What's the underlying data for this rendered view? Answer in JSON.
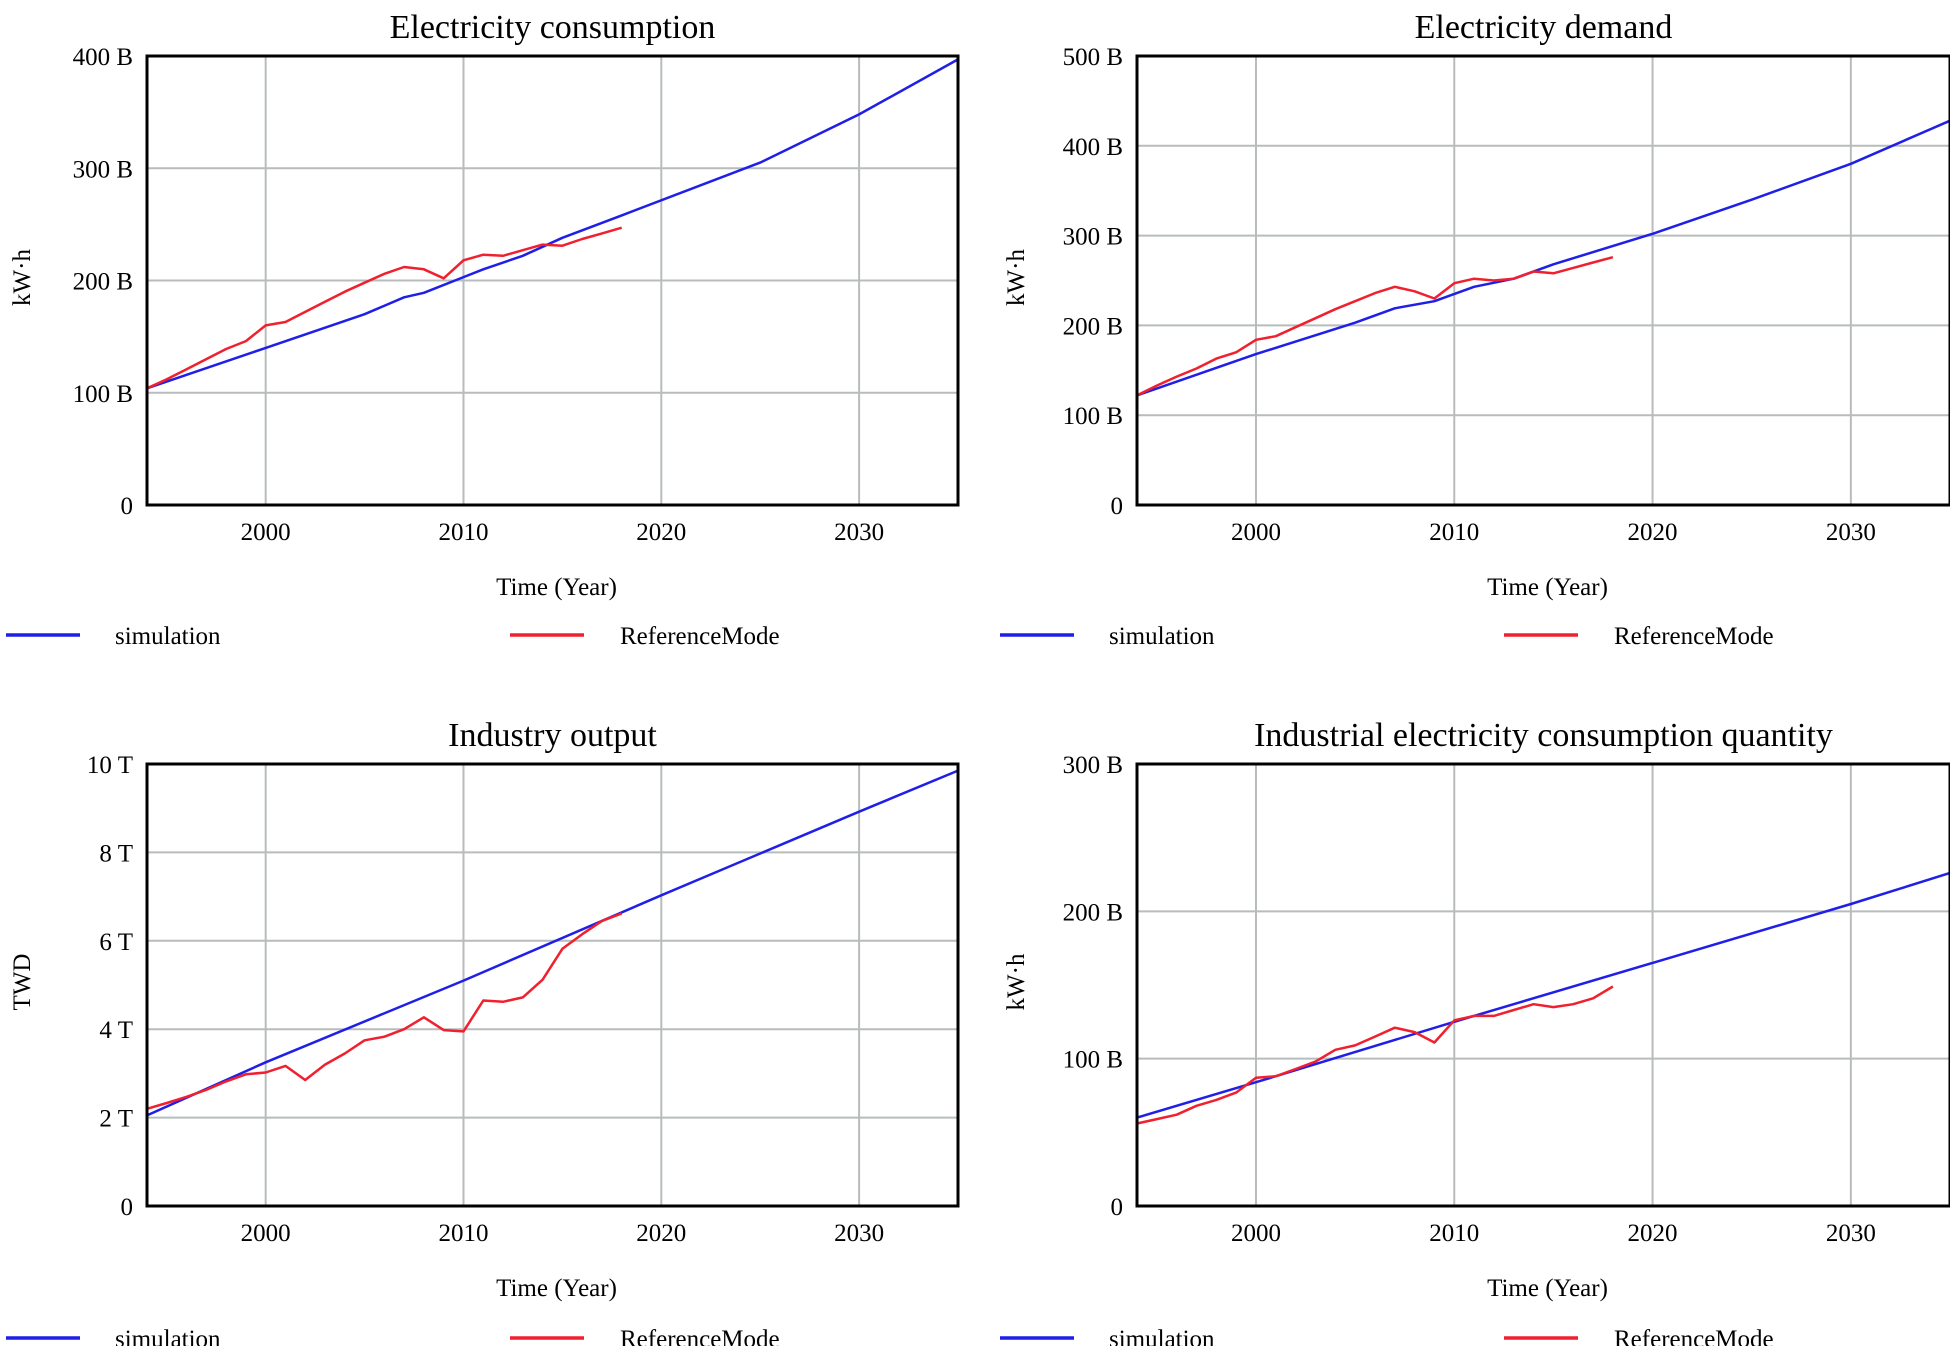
{
  "colors": {
    "simulation": "#1f1fe8",
    "reference": "#f0202e",
    "grid": "#b8bcbc"
  },
  "legend": {
    "simulation_label": "simulation",
    "reference_label": "ReferenceMode"
  },
  "chart_data": [
    {
      "type": "line",
      "title": "Electricity consumption",
      "xlabel": "Time (Year)",
      "ylabel": "kW·h",
      "xlim": [
        1994,
        2035
      ],
      "ylim": [
        0,
        400
      ],
      "xticks": [
        2000,
        2010,
        2020,
        2030
      ],
      "yticks": [
        0,
        100,
        200,
        300,
        400
      ],
      "ytick_labels": [
        "0",
        "100 B",
        "200 B",
        "300 B",
        "400 B"
      ],
      "grid": true,
      "legend_position": "bottom",
      "series": [
        {
          "name": "simulation",
          "x": [
            1994,
            2000,
            2005,
            2007,
            2008,
            2010,
            2011,
            2013,
            2015,
            2018,
            2025,
            2030,
            2035
          ],
          "y": [
            104,
            140,
            170,
            185,
            189,
            203,
            210,
            222,
            238,
            258,
            305,
            348,
            397
          ]
        },
        {
          "name": "ReferenceMode",
          "x": [
            1994,
            1995,
            1996,
            1997,
            1998,
            1999,
            2000,
            2001,
            2002,
            2003,
            2004,
            2005,
            2006,
            2007,
            2008,
            2009,
            2010,
            2011,
            2012,
            2013,
            2014,
            2015,
            2016,
            2017,
            2018
          ],
          "y": [
            104,
            112,
            121,
            130,
            139,
            146,
            160,
            163,
            172,
            181,
            190,
            198,
            206,
            212,
            210,
            202,
            218,
            223,
            222,
            227,
            232,
            231,
            237,
            242,
            247
          ]
        }
      ]
    },
    {
      "type": "line",
      "title": "Electricity demand",
      "xlabel": "Time (Year)",
      "ylabel": "kW·h",
      "xlim": [
        1994,
        2035
      ],
      "ylim": [
        0,
        500
      ],
      "xticks": [
        2000,
        2010,
        2020,
        2030
      ],
      "yticks": [
        0,
        100,
        200,
        300,
        400,
        500
      ],
      "ytick_labels": [
        "0",
        "100 B",
        "200 B",
        "300 B",
        "400 B",
        "500 B"
      ],
      "grid": true,
      "legend_position": "bottom",
      "series": [
        {
          "name": "simulation",
          "x": [
            1994,
            2000,
            2005,
            2007,
            2009,
            2011,
            2013,
            2015,
            2020,
            2025,
            2030,
            2035
          ],
          "y": [
            122,
            168,
            203,
            219,
            227,
            243,
            252,
            268,
            302,
            340,
            380,
            428
          ]
        },
        {
          "name": "ReferenceMode",
          "x": [
            1994,
            1995,
            1996,
            1997,
            1998,
            1999,
            2000,
            2001,
            2002,
            2003,
            2004,
            2005,
            2006,
            2007,
            2008,
            2009,
            2010,
            2011,
            2012,
            2013,
            2014,
            2015,
            2016,
            2017,
            2018
          ],
          "y": [
            122,
            133,
            143,
            152,
            163,
            170,
            184,
            188,
            198,
            208,
            218,
            227,
            236,
            243,
            238,
            230,
            247,
            252,
            250,
            252,
            260,
            258,
            264,
            270,
            276
          ]
        }
      ]
    },
    {
      "type": "line",
      "title": "Industry output",
      "xlabel": "Time (Year)",
      "ylabel": "TWD",
      "xlim": [
        1994,
        2035
      ],
      "ylim": [
        0,
        10
      ],
      "xticks": [
        2000,
        2010,
        2020,
        2030
      ],
      "yticks": [
        0,
        2,
        4,
        6,
        8,
        10
      ],
      "ytick_labels": [
        "0",
        "2 T",
        "4 T",
        "6 T",
        "8 T",
        "10 T"
      ],
      "grid": true,
      "legend_position": "bottom",
      "series": [
        {
          "name": "simulation",
          "x": [
            1994,
            2000,
            2010,
            2020,
            2030,
            2035
          ],
          "y": [
            2.05,
            3.25,
            5.1,
            7.03,
            8.92,
            9.85
          ]
        },
        {
          "name": "ReferenceMode",
          "x": [
            1994,
            1995,
            1996,
            1997,
            1998,
            1999,
            2000,
            2001,
            2002,
            2003,
            2004,
            2005,
            2006,
            2007,
            2008,
            2009,
            2010,
            2011,
            2012,
            2013,
            2014,
            2015,
            2016,
            2017,
            2018
          ],
          "y": [
            2.2,
            2.33,
            2.47,
            2.63,
            2.82,
            2.98,
            3.02,
            3.17,
            2.85,
            3.2,
            3.45,
            3.75,
            3.83,
            4.0,
            4.27,
            3.98,
            3.95,
            4.65,
            4.62,
            4.72,
            5.12,
            5.82,
            6.15,
            6.45,
            6.62
          ]
        }
      ]
    },
    {
      "type": "line",
      "title": "Industrial electricity consumption quantity",
      "xlabel": "Time (Year)",
      "ylabel": "kW·h",
      "xlim": [
        1994,
        2035
      ],
      "ylim": [
        0,
        300
      ],
      "xticks": [
        2000,
        2010,
        2020,
        2030
      ],
      "yticks": [
        0,
        100,
        200,
        300
      ],
      "ytick_labels": [
        "0",
        "100 B",
        "200 B",
        "300 B"
      ],
      "grid": true,
      "legend_position": "bottom",
      "series": [
        {
          "name": "simulation",
          "x": [
            1994,
            2000,
            2010,
            2020,
            2030,
            2035
          ],
          "y": [
            60,
            84,
            125,
            165,
            205,
            226
          ]
        },
        {
          "name": "ReferenceMode",
          "x": [
            1994,
            1995,
            1996,
            1997,
            1998,
            1999,
            2000,
            2001,
            2002,
            2003,
            2004,
            2005,
            2006,
            2007,
            2008,
            2009,
            2010,
            2011,
            2012,
            2013,
            2014,
            2015,
            2016,
            2017,
            2018
          ],
          "y": [
            56,
            59,
            62,
            68,
            72,
            77,
            87,
            88,
            93,
            98,
            106,
            109,
            115,
            121,
            118,
            111,
            126,
            129,
            129,
            133,
            137,
            135,
            137,
            141,
            149
          ]
        }
      ]
    }
  ]
}
